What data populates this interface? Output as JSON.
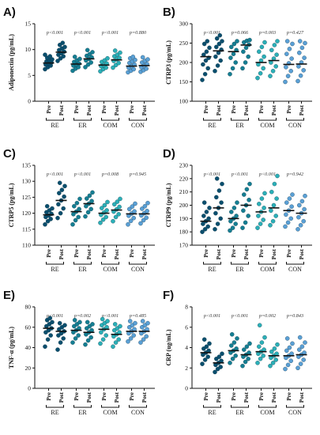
{
  "colors": {
    "RE": "#0a4f6e",
    "ER": "#157f93",
    "COM": "#2bb0b8",
    "CON": "#5aa0d6",
    "axis": "#111111"
  },
  "chart_data": [
    {
      "letter": "A)",
      "type": "scatter",
      "ylabel": "Adiponectin (pg/mL)",
      "ylim": [
        0,
        15
      ],
      "yticks": [
        0,
        5,
        10,
        15
      ],
      "groups": [
        "RE",
        "ER",
        "COM",
        "CON"
      ],
      "timepoints": [
        "Pre",
        "Post"
      ],
      "pvalues": [
        "p<0.001",
        "p<0.001",
        "p<0.001",
        "p=0.880"
      ],
      "series": [
        {
          "group": "RE",
          "time": "Pre",
          "mean": 7.4,
          "values": [
            6.2,
            6.6,
            6.9,
            7.1,
            7.3,
            7.5,
            7.7,
            7.9,
            8.1,
            8.4,
            8.7,
            9.0
          ]
        },
        {
          "group": "RE",
          "time": "Post",
          "mean": 9.5,
          "values": [
            7.8,
            8.3,
            8.7,
            9.0,
            9.3,
            9.6,
            9.9,
            10.2,
            10.5,
            10.9,
            11.3
          ]
        },
        {
          "group": "ER",
          "time": "Pre",
          "mean": 7.2,
          "values": [
            5.9,
            6.3,
            6.6,
            6.9,
            7.1,
            7.3,
            7.6,
            7.9,
            8.2,
            8.6
          ]
        },
        {
          "group": "ER",
          "time": "Post",
          "mean": 8.2,
          "values": [
            6.6,
            7.1,
            7.5,
            7.9,
            8.2,
            8.5,
            8.8,
            9.1,
            9.5,
            9.9
          ]
        },
        {
          "group": "COM",
          "time": "Pre",
          "mean": 7.0,
          "values": [
            5.8,
            6.2,
            6.5,
            6.8,
            7.0,
            7.3,
            7.6,
            7.9,
            8.3
          ]
        },
        {
          "group": "COM",
          "time": "Post",
          "mean": 8.0,
          "values": [
            6.5,
            7.0,
            7.4,
            7.8,
            8.1,
            8.4,
            8.7,
            9.0,
            9.4,
            9.8
          ]
        },
        {
          "group": "CON",
          "time": "Pre",
          "mean": 6.8,
          "values": [
            5.6,
            5.9,
            6.2,
            6.5,
            6.8,
            7.1,
            7.4,
            7.7,
            8.0,
            8.3,
            8.6
          ]
        },
        {
          "group": "CON",
          "time": "Post",
          "mean": 6.9,
          "values": [
            5.7,
            6.0,
            6.3,
            6.6,
            6.9,
            7.2,
            7.5,
            7.8,
            8.1,
            8.5
          ]
        }
      ]
    },
    {
      "letter": "B)",
      "type": "scatter",
      "ylabel": "CTRP3 (pg/mL)",
      "ylim": [
        100,
        300
      ],
      "yticks": [
        100,
        150,
        200,
        250,
        300
      ],
      "groups": [
        "RE",
        "ER",
        "COM",
        "CON"
      ],
      "timepoints": [
        "Pre",
        "Post"
      ],
      "pvalues": [
        "p<0.001",
        "p=0.066",
        "p=0.003",
        "p=0.427"
      ],
      "series": [
        {
          "group": "RE",
          "time": "Pre",
          "mean": 215,
          "values": [
            155,
            170,
            185,
            195,
            205,
            212,
            220,
            228,
            238,
            248,
            255
          ]
        },
        {
          "group": "RE",
          "time": "Post",
          "mean": 230,
          "values": [
            178,
            192,
            205,
            215,
            225,
            233,
            240,
            248,
            255,
            262,
            270
          ]
        },
        {
          "group": "ER",
          "time": "Pre",
          "mean": 228,
          "values": [
            170,
            185,
            200,
            212,
            222,
            232,
            240,
            248,
            255
          ]
        },
        {
          "group": "ER",
          "time": "Post",
          "mean": 245,
          "values": [
            185,
            200,
            215,
            228,
            238,
            246,
            252,
            256,
            258
          ]
        },
        {
          "group": "COM",
          "time": "Pre",
          "mean": 200,
          "values": [
            160,
            172,
            185,
            195,
            205,
            215,
            228,
            240,
            252
          ]
        },
        {
          "group": "COM",
          "time": "Post",
          "mean": 205,
          "values": [
            165,
            178,
            190,
            200,
            210,
            220,
            232,
            245,
            255
          ]
        },
        {
          "group": "CON",
          "time": "Pre",
          "mean": 195,
          "values": [
            150,
            165,
            178,
            188,
            198,
            210,
            222,
            235,
            248,
            255
          ]
        },
        {
          "group": "CON",
          "time": "Post",
          "mean": 196,
          "values": [
            152,
            166,
            180,
            190,
            200,
            212,
            225,
            238,
            250,
            255
          ]
        }
      ]
    },
    {
      "letter": "C)",
      "type": "scatter",
      "ylabel": "CTRP5 (pg/mL)",
      "ylim": [
        110,
        135
      ],
      "yticks": [
        110,
        115,
        120,
        125,
        130,
        135
      ],
      "groups": [
        "RE",
        "ER",
        "COM",
        "CON"
      ],
      "timepoints": [
        "Pre",
        "Post"
      ],
      "pvalues": [
        "p<0.001",
        "p<0.001",
        "p=0.008",
        "p=0.945"
      ],
      "series": [
        {
          "group": "RE",
          "time": "Pre",
          "mean": 119.5,
          "values": [
            116.5,
            117.5,
            118.2,
            118.8,
            119.3,
            119.8,
            120.3,
            120.9,
            121.5,
            122.2
          ]
        },
        {
          "group": "RE",
          "time": "Post",
          "mean": 124,
          "values": [
            118.5,
            120,
            121.5,
            122.8,
            124,
            125.2,
            126.3,
            127.3,
            128.5,
            129.5
          ]
        },
        {
          "group": "ER",
          "time": "Pre",
          "mean": 120.5,
          "values": [
            116.5,
            117.8,
            118.8,
            119.7,
            120.5,
            121.3,
            122.2,
            123.2,
            124.5
          ]
        },
        {
          "group": "ER",
          "time": "Post",
          "mean": 123,
          "values": [
            119,
            120.3,
            121.3,
            122.2,
            123,
            123.8,
            124.6,
            125.5,
            126.5
          ]
        },
        {
          "group": "COM",
          "time": "Pre",
          "mean": 120,
          "values": [
            117,
            118,
            118.8,
            119.5,
            120.2,
            120.9,
            121.6,
            122.5,
            123.5
          ]
        },
        {
          "group": "COM",
          "time": "Post",
          "mean": 121,
          "values": [
            117.5,
            118.8,
            119.7,
            120.5,
            121.2,
            122,
            122.8,
            123.6,
            124.5
          ]
        },
        {
          "group": "CON",
          "time": "Pre",
          "mean": 119.8,
          "values": [
            116.5,
            117.6,
            118.5,
            119.2,
            119.9,
            120.6,
            121.3,
            122.1,
            123
          ]
        },
        {
          "group": "CON",
          "time": "Post",
          "mean": 119.8,
          "values": [
            116.8,
            117.8,
            118.6,
            119.3,
            120,
            120.7,
            121.4,
            122.2,
            123.2
          ]
        }
      ]
    },
    {
      "letter": "D)",
      "type": "scatter",
      "ylabel": "CTRP9 (pg/mL)",
      "ylim": [
        170,
        230
      ],
      "yticks": [
        170,
        180,
        190,
        200,
        210,
        220,
        230
      ],
      "groups": [
        "RE",
        "ER",
        "COM",
        "CON"
      ],
      "timepoints": [
        "Pre",
        "Post"
      ],
      "pvalues": [
        "p<0.001",
        "p<0.001",
        "p<0.001",
        "p=0.942"
      ],
      "series": [
        {
          "group": "RE",
          "time": "Pre",
          "mean": 188,
          "values": [
            180,
            182,
            184,
            186,
            188,
            190,
            192,
            195,
            198,
            202
          ]
        },
        {
          "group": "RE",
          "time": "Post",
          "mean": 198,
          "values": [
            182,
            186,
            190,
            194,
            198,
            202,
            206,
            211,
            216,
            220
          ]
        },
        {
          "group": "ER",
          "time": "Pre",
          "mean": 190,
          "values": [
            181,
            183,
            186,
            188,
            190,
            192,
            195,
            198,
            202
          ]
        },
        {
          "group": "ER",
          "time": "Post",
          "mean": 200,
          "values": [
            183,
            187,
            192,
            196,
            200,
            204,
            208,
            212,
            216
          ]
        },
        {
          "group": "COM",
          "time": "Pre",
          "mean": 195,
          "values": [
            183,
            186,
            189,
            192,
            195,
            198,
            201,
            205,
            209
          ]
        },
        {
          "group": "COM",
          "time": "Post",
          "mean": 198,
          "values": [
            185,
            188,
            192,
            196,
            200,
            205,
            210,
            216,
            222
          ]
        },
        {
          "group": "CON",
          "time": "Pre",
          "mean": 196,
          "values": [
            184,
            187,
            190,
            193,
            196,
            199,
            202,
            205,
            208
          ]
        },
        {
          "group": "CON",
          "time": "Post",
          "mean": 194,
          "values": [
            182,
            185,
            188,
            191,
            194,
            197,
            200,
            203,
            207
          ]
        }
      ]
    },
    {
      "letter": "E)",
      "type": "scatter",
      "ylabel": "TNF-α (pg/mL)",
      "ylim": [
        0,
        80
      ],
      "yticks": [
        0,
        20,
        40,
        60,
        80
      ],
      "groups": [
        "RE",
        "ER",
        "COM",
        "CON"
      ],
      "timepoints": [
        "Pre",
        "Post"
      ],
      "pvalues": [
        "p<0.001",
        "p=0.002",
        "p<0.001",
        "p=0.485"
      ],
      "series": [
        {
          "group": "RE",
          "time": "Pre",
          "mean": 59,
          "values": [
            41,
            48,
            52,
            55,
            57,
            59,
            61,
            63,
            65,
            67,
            69
          ]
        },
        {
          "group": "RE",
          "time": "Post",
          "mean": 56,
          "values": [
            38,
            45,
            49,
            52,
            54,
            56,
            58,
            60,
            62,
            64
          ]
        },
        {
          "group": "ER",
          "time": "Pre",
          "mean": 57,
          "values": [
            45,
            49,
            52,
            55,
            57,
            59,
            61,
            63,
            65,
            67
          ]
        },
        {
          "group": "ER",
          "time": "Post",
          "mean": 55,
          "values": [
            43,
            47,
            50,
            53,
            55,
            57,
            59,
            61,
            63,
            65
          ]
        },
        {
          "group": "COM",
          "time": "Pre",
          "mean": 58,
          "values": [
            44,
            48,
            52,
            55,
            58,
            60,
            62,
            64,
            66,
            68
          ]
        },
        {
          "group": "COM",
          "time": "Post",
          "mean": 53,
          "values": [
            41,
            45,
            48,
            51,
            53,
            55,
            57,
            59,
            61,
            63
          ]
        },
        {
          "group": "CON",
          "time": "Pre",
          "mean": 56,
          "values": [
            46,
            49,
            52,
            54,
            56,
            58,
            60,
            62,
            64,
            66
          ]
        },
        {
          "group": "CON",
          "time": "Post",
          "mean": 56,
          "values": [
            45,
            48,
            51,
            54,
            56,
            58,
            60,
            62,
            64,
            66
          ]
        }
      ]
    },
    {
      "letter": "F)",
      "type": "scatter",
      "ylabel": "CRP (ug/mL)",
      "ylim": [
        0,
        8
      ],
      "yticks": [
        0,
        2,
        4,
        6,
        8
      ],
      "groups": [
        "RE",
        "ER",
        "COM",
        "CON"
      ],
      "timepoints": [
        "Pre",
        "Post"
      ],
      "pvalues": [
        "p<0.001",
        "p<0.001",
        "p=0.002",
        "p=0.843"
      ],
      "series": [
        {
          "group": "RE",
          "time": "Pre",
          "mean": 3.5,
          "values": [
            2.4,
            2.8,
            3.1,
            3.3,
            3.5,
            3.7,
            3.9,
            4.1,
            4.4,
            4.8
          ]
        },
        {
          "group": "RE",
          "time": "Post",
          "mean": 2.5,
          "values": [
            1.6,
            1.9,
            2.1,
            2.3,
            2.5,
            2.7,
            2.9,
            3.1,
            3.4
          ]
        },
        {
          "group": "ER",
          "time": "Pre",
          "mean": 3.7,
          "values": [
            2.5,
            2.9,
            3.2,
            3.5,
            3.7,
            3.9,
            4.2,
            4.5,
            4.9,
            5.3
          ]
        },
        {
          "group": "ER",
          "time": "Post",
          "mean": 3.3,
          "values": [
            2.2,
            2.6,
            2.9,
            3.1,
            3.3,
            3.5,
            3.8,
            4.1,
            4.4
          ]
        },
        {
          "group": "COM",
          "time": "Pre",
          "mean": 3.6,
          "values": [
            2.5,
            2.9,
            3.2,
            3.4,
            3.6,
            3.8,
            4.1,
            4.5,
            5.0,
            6.2
          ]
        },
        {
          "group": "COM",
          "time": "Post",
          "mean": 3.2,
          "values": [
            2.2,
            2.5,
            2.8,
            3.0,
            3.2,
            3.4,
            3.6,
            3.9,
            4.3
          ]
        },
        {
          "group": "CON",
          "time": "Pre",
          "mean": 3.2,
          "values": [
            1.9,
            2.3,
            2.7,
            3.0,
            3.2,
            3.4,
            3.7,
            4.0,
            4.4,
            4.9
          ]
        },
        {
          "group": "CON",
          "time": "Post",
          "mean": 3.3,
          "values": [
            2.0,
            2.4,
            2.8,
            3.1,
            3.3,
            3.5,
            3.8,
            4.1,
            4.5,
            5.0
          ]
        }
      ]
    }
  ]
}
